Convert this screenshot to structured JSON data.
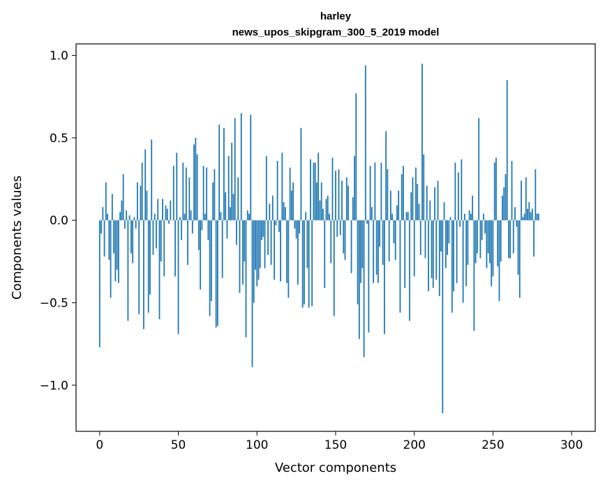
{
  "chart_data": {
    "type": "bar",
    "title": "harley",
    "subtitle": "news_upos_skipgram_300_5_2019 model",
    "xlabel": "Vector components",
    "ylabel": "Components values",
    "xlim": [
      -15,
      315
    ],
    "ylim": [
      -1.28,
      1.07
    ],
    "xticks": [
      0,
      50,
      100,
      150,
      200,
      250,
      300
    ],
    "yticks": [
      -1.0,
      -0.5,
      0.0,
      0.5,
      1.0
    ],
    "ytick_labels": [
      "−1.0",
      "−0.5",
      "0.0",
      "0.5",
      "1.0"
    ],
    "bar_color": "#1f77b4",
    "values": [
      -0.77,
      -0.08,
      0.08,
      -0.22,
      0.23,
      0.04,
      -0.24,
      -0.47,
      0.16,
      -0.2,
      -0.37,
      -0.3,
      -0.38,
      0.05,
      0.12,
      0.28,
      -0.05,
      0.06,
      -0.61,
      0.03,
      -0.2,
      -0.26,
      0.02,
      -0.05,
      0.23,
      -0.57,
      0.21,
      0.35,
      -0.66,
      0.43,
      0.18,
      -0.56,
      -0.45,
      0.49,
      -0.21,
      0.04,
      -0.17,
      0.13,
      -0.6,
      -0.25,
      0.13,
      -0.34,
      0.09,
      0.07,
      -0.02,
      0.12,
      0.0,
      0.33,
      -0.34,
      0.41,
      -0.69,
      0.02,
      -0.12,
      0.35,
      0.04,
      0.32,
      -0.27,
      0.26,
      0.06,
      -0.08,
      0.46,
      0.5,
      0.4,
      -0.18,
      -0.42,
      -0.06,
      0.33,
      0.04,
      0.32,
      -0.12,
      -0.58,
      -0.49,
      0.23,
      0.31,
      -0.65,
      -0.64,
      0.58,
      0.05,
      -0.35,
      0.56,
      0.17,
      -0.11,
      0.39,
      0.08,
      0.47,
      0.16,
      0.62,
      -0.15,
      0.26,
      -0.44,
      0.65,
      -0.39,
      -0.25,
      -0.71,
      0.06,
      0.04,
      0.64,
      -0.89,
      -0.5,
      -0.3,
      -0.4,
      -0.36,
      -0.29,
      -0.12,
      -0.1,
      -0.29,
      0.39,
      -0.21,
      0.1,
      -0.27,
      0.15,
      -0.36,
      -0.03,
      0.36,
      -0.07,
      -0.37,
      0.41,
      0.11,
      0.08,
      -0.38,
      -0.47,
      0.32,
      0.18,
      0.23,
      -0.05,
      -0.11,
      -0.39,
      -0.08,
      0.56,
      -0.53,
      -0.51,
      0.05,
      -0.29,
      -0.53,
      0.37,
      -0.52,
      0.35,
      0.35,
      0.23,
      0.41,
      0.12,
      0.23,
      0.07,
      -0.41,
      0.13,
      0.15,
      0.04,
      -0.26,
      0.38,
      -0.58,
      0.3,
      -0.1,
      0.31,
      -0.09,
      0.24,
      -0.2,
      -0.24,
      0.26,
      0.21,
      0.0,
      -0.32,
      0.14,
      0.39,
      0.77,
      -0.51,
      -0.72,
      -0.38,
      -0.29,
      -0.83,
      0.94,
      -0.02,
      -0.68,
      0.33,
      0.08,
      -0.38,
      0.35,
      -0.33,
      -0.38,
      -0.16,
      0.35,
      -0.27,
      -0.69,
      0.54,
      0.31,
      -0.25,
      0.18,
      0.04,
      -0.14,
      -0.24,
      0.09,
      0.18,
      -0.56,
      0.28,
      0.33,
      -0.41,
      0.05,
      0.05,
      -0.61,
      0.17,
      0.26,
      -0.34,
      0.32,
      0.22,
      0.1,
      -0.21,
      0.95,
      0.4,
      -0.23,
      0.21,
      -0.43,
      0.12,
      -0.35,
      -0.41,
      0.2,
      -0.36,
      0.24,
      -0.46,
      -0.19,
      -1.17,
      0.11,
      -0.29,
      -0.21,
      -0.14,
      0.02,
      -0.56,
      -0.43,
      0.35,
      -0.38,
      0.29,
      -0.04,
      0.37,
      -0.5,
      0.04,
      -0.4,
      -0.27,
      0.06,
      0.04,
      0.15,
      -0.67,
      -0.26,
      -0.2,
      0.62,
      -0.23,
      -0.12,
      0.04,
      -0.08,
      -0.29,
      -0.2,
      -0.26,
      -0.4,
      -0.34,
      0.35,
      0.38,
      -0.28,
      -0.49,
      -0.25,
      0.15,
      0.2,
      0.28,
      0.85,
      -0.23,
      -0.23,
      0.36,
      -0.2,
      0.08,
      -0.04,
      -0.33,
      -0.47,
      0.24,
      0.02,
      0.04,
      0.26,
      0.07,
      0.11,
      0.05,
      0.07,
      -0.22,
      0.31,
      0.04,
      0.04
    ]
  }
}
